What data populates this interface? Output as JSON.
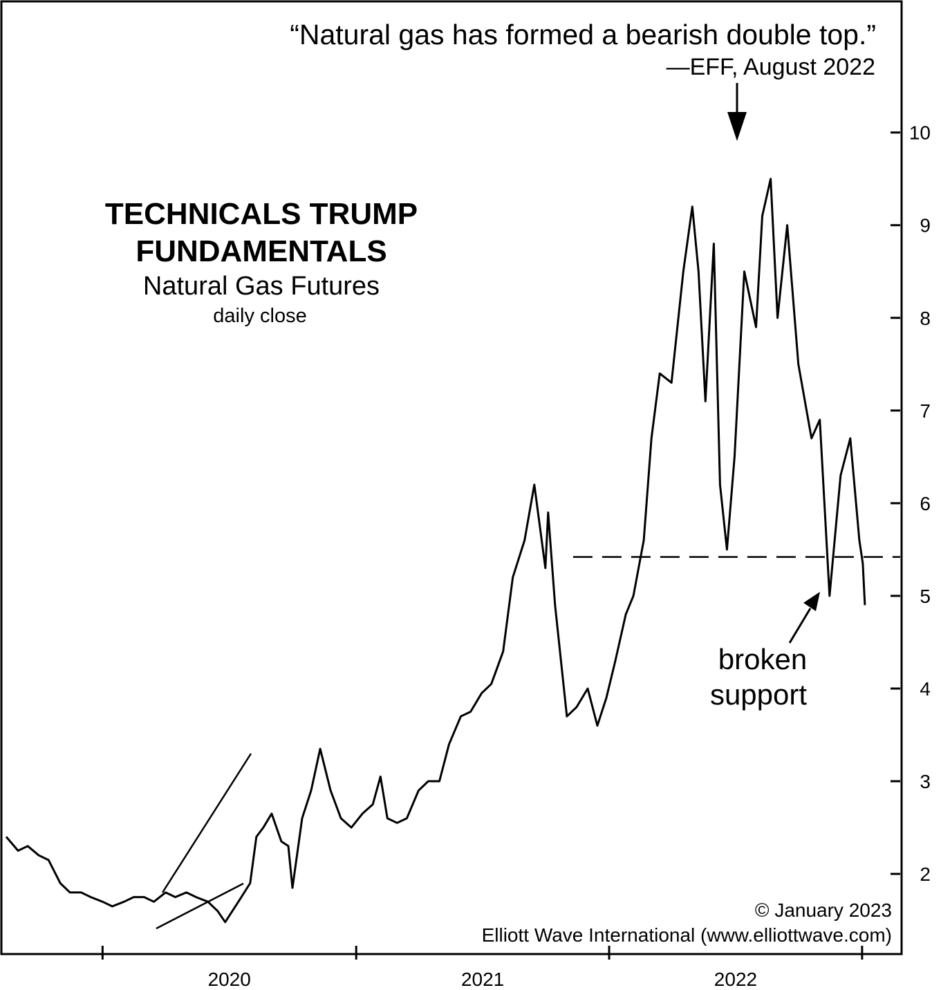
{
  "chart_data": {
    "type": "line",
    "title": "TECHNICALS TRUMP",
    "title_line2": "FUNDAMENTALS",
    "subtitle": "Natural Gas Futures",
    "subtitle2": "daily close",
    "quote": "“Natural gas has formed a bearish double top.”",
    "quote_attribution": "—EFF, August 2022",
    "annotation": "broken",
    "annotation_line2": "support",
    "copyright": "© January 2023",
    "source": "Elliott Wave International (www.elliottwave.com)",
    "x_ticks": [
      "2020",
      "2021",
      "2022"
    ],
    "y_ticks": [
      "2",
      "3",
      "4",
      "5",
      "6",
      "7",
      "8",
      "9",
      "10"
    ],
    "ylim": [
      1.15,
      11.4
    ],
    "xlim": [
      "2019-08-10",
      "2023-02-25"
    ],
    "grid": false,
    "support_level": 5.42,
    "series": [
      {
        "name": "",
        "x": [
          "2019-08-15",
          "2019-09-01",
          "2019-09-15",
          "2019-10-01",
          "2019-10-15",
          "2019-11-01",
          "2019-11-15",
          "2019-12-01",
          "2019-12-15",
          "2020-01-01",
          "2020-01-15",
          "2020-02-01",
          "2020-02-15",
          "2020-03-01",
          "2020-03-15",
          "2020-04-01",
          "2020-04-15",
          "2020-05-01",
          "2020-05-15",
          "2020-06-01",
          "2020-06-15",
          "2020-06-26",
          "2020-07-15",
          "2020-08-01",
          "2020-08-10",
          "2020-08-20",
          "2020-09-01",
          "2020-09-15",
          "2020-09-25",
          "2020-10-01",
          "2020-10-15",
          "2020-10-28",
          "2020-11-10",
          "2020-11-25",
          "2020-12-10",
          "2020-12-25",
          "2021-01-10",
          "2021-01-25",
          "2021-02-05",
          "2021-02-15",
          "2021-03-01",
          "2021-03-15",
          "2021-04-01",
          "2021-04-15",
          "2021-05-01",
          "2021-05-15",
          "2021-06-01",
          "2021-06-15",
          "2021-07-01",
          "2021-07-15",
          "2021-08-01",
          "2021-08-15",
          "2021-09-01",
          "2021-09-15",
          "2021-10-01",
          "2021-10-05",
          "2021-10-15",
          "2021-11-01",
          "2021-11-15",
          "2021-12-01",
          "2021-12-15",
          "2021-12-28",
          "2022-01-10",
          "2022-01-25",
          "2022-02-05",
          "2022-02-20",
          "2022-03-03",
          "2022-03-15",
          "2022-04-01",
          "2022-04-18",
          "2022-05-01",
          "2022-05-10",
          "2022-05-20",
          "2022-06-01",
          "2022-06-10",
          "2022-06-20",
          "2022-07-01",
          "2022-07-15",
          "2022-08-01",
          "2022-08-10",
          "2022-08-22",
          "2022-09-01",
          "2022-09-15",
          "2022-10-01",
          "2022-10-20",
          "2022-11-01",
          "2022-11-15",
          "2022-12-01",
          "2022-12-15",
          "2022-12-28",
          "2023-01-02",
          "2023-01-05"
        ],
        "values": [
          2.4,
          2.25,
          2.3,
          2.2,
          2.15,
          1.9,
          1.8,
          1.8,
          1.75,
          1.7,
          1.65,
          1.7,
          1.75,
          1.75,
          1.7,
          1.8,
          1.75,
          1.8,
          1.75,
          1.7,
          1.6,
          1.48,
          1.7,
          1.9,
          2.4,
          2.5,
          2.65,
          2.35,
          2.3,
          1.85,
          2.6,
          2.9,
          3.35,
          2.9,
          2.6,
          2.5,
          2.65,
          2.75,
          3.05,
          2.6,
          2.55,
          2.6,
          2.9,
          3.0,
          3.0,
          3.4,
          3.7,
          3.75,
          3.95,
          4.05,
          4.4,
          5.2,
          5.6,
          6.2,
          5.3,
          5.9,
          4.9,
          3.7,
          3.8,
          4.0,
          3.6,
          3.9,
          4.3,
          4.8,
          5.0,
          5.6,
          6.7,
          7.4,
          7.3,
          8.5,
          9.2,
          8.5,
          7.1,
          8.8,
          6.2,
          5.5,
          6.5,
          8.5,
          7.9,
          9.1,
          9.5,
          8.0,
          9.0,
          7.5,
          6.7,
          6.9,
          5.0,
          6.3,
          6.7,
          5.6,
          5.35,
          4.9
        ]
      }
    ]
  }
}
